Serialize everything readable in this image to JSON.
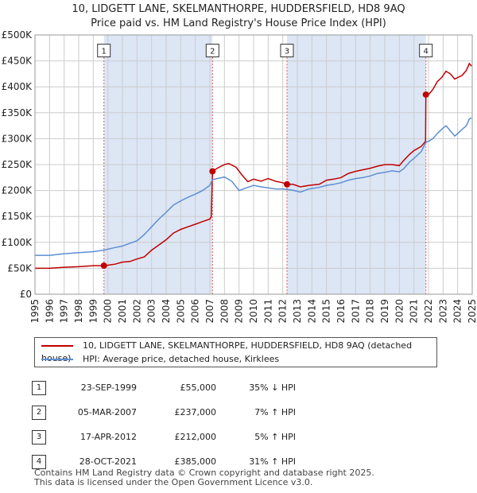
{
  "title": {
    "line1": "10, LIDGETT LANE, SKELMANTHORPE, HUDDERSFIELD, HD8 9AQ",
    "line2": "Price paid vs. HM Land Registry's House Price Index (HPI)"
  },
  "colors": {
    "property": "#c00000",
    "hpi": "#5b8fd4",
    "shade": "#dde6f5",
    "grid": "#cccccc",
    "marker_line": "#e06060"
  },
  "chart_data": {
    "type": "line",
    "title": "Price paid vs. HM Land Registry's House Price Index (HPI)",
    "x_range": [
      1995,
      2025
    ],
    "ylim": [
      0,
      500000
    ],
    "y_ticks": [
      {
        "value": 0,
        "label": "£0"
      },
      {
        "value": 50000,
        "label": "£50K"
      },
      {
        "value": 100000,
        "label": "£100K"
      },
      {
        "value": 150000,
        "label": "£150K"
      },
      {
        "value": 200000,
        "label": "£200K"
      },
      {
        "value": 250000,
        "label": "£250K"
      },
      {
        "value": 300000,
        "label": "£300K"
      },
      {
        "value": 350000,
        "label": "£350K"
      },
      {
        "value": 400000,
        "label": "£400K"
      },
      {
        "value": 450000,
        "label": "£450K"
      },
      {
        "value": 500000,
        "label": "£500K"
      }
    ],
    "x_ticks": [
      "1995",
      "1996",
      "1997",
      "1998",
      "1999",
      "2000",
      "2001",
      "2002",
      "2003",
      "2004",
      "2005",
      "2006",
      "2007",
      "2008",
      "2009",
      "2010",
      "2011",
      "2012",
      "2013",
      "2014",
      "2015",
      "2016",
      "2017",
      "2018",
      "2019",
      "2020",
      "2021",
      "2022",
      "2023",
      "2024",
      "2025"
    ],
    "shaded_periods": [
      [
        1999.73,
        2007.18
      ],
      [
        2012.29,
        2021.82
      ]
    ],
    "sales": [
      {
        "id": "1",
        "x": 1999.73,
        "y": 55000
      },
      {
        "id": "2",
        "x": 2007.18,
        "y": 237000
      },
      {
        "id": "3",
        "x": 2012.29,
        "y": 212000
      },
      {
        "id": "4",
        "x": 2021.82,
        "y": 385000
      }
    ],
    "series": [
      {
        "name": "10, LIDGETT LANE, SKELMANTHORPE, HUDDERSFIELD, HD8 9AQ (detached house)",
        "key": "property",
        "points": [
          [
            1995.0,
            50000
          ],
          [
            1996.0,
            50000
          ],
          [
            1997.0,
            52000
          ],
          [
            1998.0,
            53000
          ],
          [
            1999.0,
            55000
          ],
          [
            1999.73,
            55000
          ],
          [
            2000.0,
            56000
          ],
          [
            2000.5,
            58000
          ],
          [
            2001.0,
            62000
          ],
          [
            2001.5,
            63000
          ],
          [
            2002.0,
            68000
          ],
          [
            2002.5,
            72000
          ],
          [
            2003.0,
            85000
          ],
          [
            2003.5,
            95000
          ],
          [
            2004.0,
            105000
          ],
          [
            2004.5,
            118000
          ],
          [
            2005.0,
            125000
          ],
          [
            2005.5,
            130000
          ],
          [
            2006.0,
            135000
          ],
          [
            2006.5,
            140000
          ],
          [
            2007.0,
            145000
          ],
          [
            2007.1,
            150000
          ],
          [
            2007.18,
            237000
          ],
          [
            2007.5,
            243000
          ],
          [
            2008.0,
            250000
          ],
          [
            2008.3,
            252000
          ],
          [
            2008.8,
            245000
          ],
          [
            2009.2,
            230000
          ],
          [
            2009.6,
            217000
          ],
          [
            2010.0,
            222000
          ],
          [
            2010.5,
            218000
          ],
          [
            2011.0,
            223000
          ],
          [
            2011.5,
            218000
          ],
          [
            2012.0,
            215000
          ],
          [
            2012.29,
            212000
          ],
          [
            2012.7,
            212000
          ],
          [
            2013.2,
            207000
          ],
          [
            2013.8,
            210000
          ],
          [
            2014.5,
            212000
          ],
          [
            2015.0,
            220000
          ],
          [
            2015.5,
            222000
          ],
          [
            2016.0,
            225000
          ],
          [
            2016.5,
            233000
          ],
          [
            2017.0,
            237000
          ],
          [
            2017.5,
            240000
          ],
          [
            2018.0,
            243000
          ],
          [
            2018.5,
            247000
          ],
          [
            2019.0,
            250000
          ],
          [
            2019.5,
            250000
          ],
          [
            2020.0,
            248000
          ],
          [
            2020.3,
            258000
          ],
          [
            2020.7,
            270000
          ],
          [
            2021.0,
            277000
          ],
          [
            2021.5,
            285000
          ],
          [
            2021.8,
            295000
          ],
          [
            2021.82,
            385000
          ],
          [
            2022.0,
            385000
          ],
          [
            2022.3,
            395000
          ],
          [
            2022.6,
            410000
          ],
          [
            2022.9,
            418000
          ],
          [
            2023.2,
            430000
          ],
          [
            2023.5,
            425000
          ],
          [
            2023.8,
            415000
          ],
          [
            2024.0,
            418000
          ],
          [
            2024.3,
            422000
          ],
          [
            2024.6,
            432000
          ],
          [
            2024.8,
            445000
          ],
          [
            2024.95,
            440000
          ]
        ]
      },
      {
        "name": "HPI: Average price, detached house, Kirklees",
        "key": "hpi",
        "points": [
          [
            1995.0,
            75000
          ],
          [
            1996.0,
            75000
          ],
          [
            1997.0,
            78000
          ],
          [
            1998.0,
            80000
          ],
          [
            1999.0,
            82000
          ],
          [
            1999.73,
            85000
          ],
          [
            2000.0,
            87000
          ],
          [
            2000.5,
            90000
          ],
          [
            2001.0,
            93000
          ],
          [
            2001.5,
            98000
          ],
          [
            2002.0,
            103000
          ],
          [
            2002.5,
            115000
          ],
          [
            2003.0,
            130000
          ],
          [
            2003.5,
            145000
          ],
          [
            2004.0,
            158000
          ],
          [
            2004.5,
            172000
          ],
          [
            2005.0,
            180000
          ],
          [
            2005.5,
            187000
          ],
          [
            2006.0,
            193000
          ],
          [
            2006.5,
            200000
          ],
          [
            2007.0,
            210000
          ],
          [
            2007.18,
            221000
          ],
          [
            2007.5,
            223000
          ],
          [
            2008.0,
            226000
          ],
          [
            2008.5,
            218000
          ],
          [
            2009.0,
            200000
          ],
          [
            2009.5,
            205000
          ],
          [
            2010.0,
            210000
          ],
          [
            2010.5,
            207000
          ],
          [
            2011.0,
            205000
          ],
          [
            2011.5,
            203000
          ],
          [
            2012.0,
            203000
          ],
          [
            2012.29,
            202000
          ],
          [
            2012.8,
            200000
          ],
          [
            2013.2,
            197000
          ],
          [
            2013.8,
            203000
          ],
          [
            2014.5,
            206000
          ],
          [
            2015.0,
            210000
          ],
          [
            2015.5,
            212000
          ],
          [
            2016.0,
            215000
          ],
          [
            2016.5,
            220000
          ],
          [
            2017.0,
            223000
          ],
          [
            2017.5,
            225000
          ],
          [
            2018.0,
            228000
          ],
          [
            2018.5,
            233000
          ],
          [
            2019.0,
            235000
          ],
          [
            2019.5,
            238000
          ],
          [
            2020.0,
            236000
          ],
          [
            2020.3,
            242000
          ],
          [
            2020.7,
            255000
          ],
          [
            2021.0,
            262000
          ],
          [
            2021.5,
            275000
          ],
          [
            2021.82,
            293000
          ],
          [
            2022.0,
            295000
          ],
          [
            2022.3,
            300000
          ],
          [
            2022.6,
            310000
          ],
          [
            2022.9,
            318000
          ],
          [
            2023.2,
            325000
          ],
          [
            2023.5,
            315000
          ],
          [
            2023.8,
            305000
          ],
          [
            2024.0,
            310000
          ],
          [
            2024.3,
            318000
          ],
          [
            2024.6,
            325000
          ],
          [
            2024.8,
            338000
          ],
          [
            2024.95,
            340000
          ]
        ]
      }
    ]
  },
  "legend": {
    "property_label": "10, LIDGETT LANE, SKELMANTHORPE, HUDDERSFIELD, HD8 9AQ (detached house)",
    "hpi_label": "HPI: Average price, detached house, Kirklees"
  },
  "sales_table": [
    {
      "num": "1",
      "date": "23-SEP-1999",
      "price": "£55,000",
      "hpi": "35% ↓ HPI"
    },
    {
      "num": "2",
      "date": "05-MAR-2007",
      "price": "£237,000",
      "hpi": "7% ↑ HPI"
    },
    {
      "num": "3",
      "date": "17-APR-2012",
      "price": "£212,000",
      "hpi": "5% ↑ HPI"
    },
    {
      "num": "4",
      "date": "28-OCT-2021",
      "price": "£385,000",
      "hpi": "31% ↑ HPI"
    }
  ],
  "footer": {
    "line1": "Contains HM Land Registry data © Crown copyright and database right 2025.",
    "line2": "This data is licensed under the Open Government Licence v3.0."
  }
}
